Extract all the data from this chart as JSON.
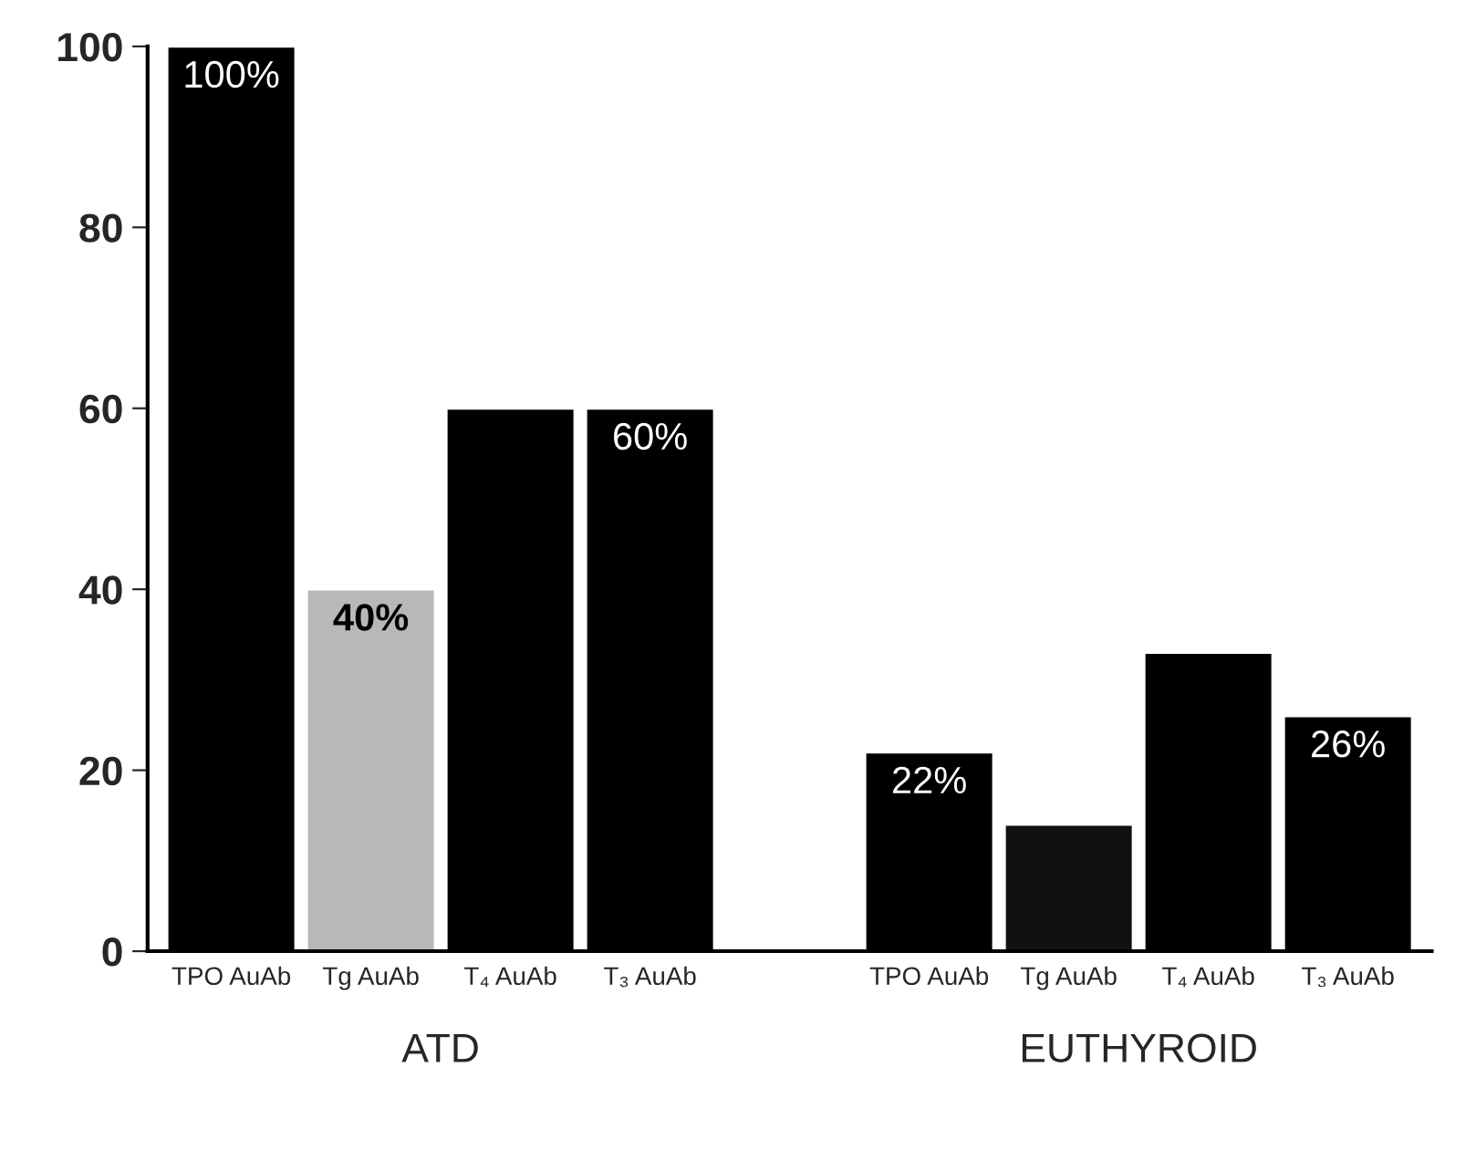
{
  "chart_data": {
    "type": "bar",
    "categories": [
      "TPO AuAb",
      "Tg AuAb",
      "T₄ AuAb",
      "T₃ AuAb",
      null,
      "TPO AuAb",
      "Tg AuAb",
      "T₄ AuAb",
      "T₃ AuAb"
    ],
    "values": [
      100,
      40,
      60,
      60,
      null,
      22,
      14,
      33,
      26
    ],
    "colors": [
      "#000000",
      "#b8b8b8",
      "#000000",
      "#000000",
      "#000000",
      "#000000",
      "#111111",
      "#000000",
      "#000000"
    ],
    "value_labels": [
      "100%",
      "40%",
      null,
      "60%",
      null,
      "22%",
      null,
      null,
      "26%"
    ],
    "annotations": [
      "ATD",
      "EUTHYROID"
    ],
    "ylim": [
      0,
      100
    ],
    "yticks": [
      0,
      20,
      40,
      60,
      80,
      100
    ],
    "grid": false
  }
}
